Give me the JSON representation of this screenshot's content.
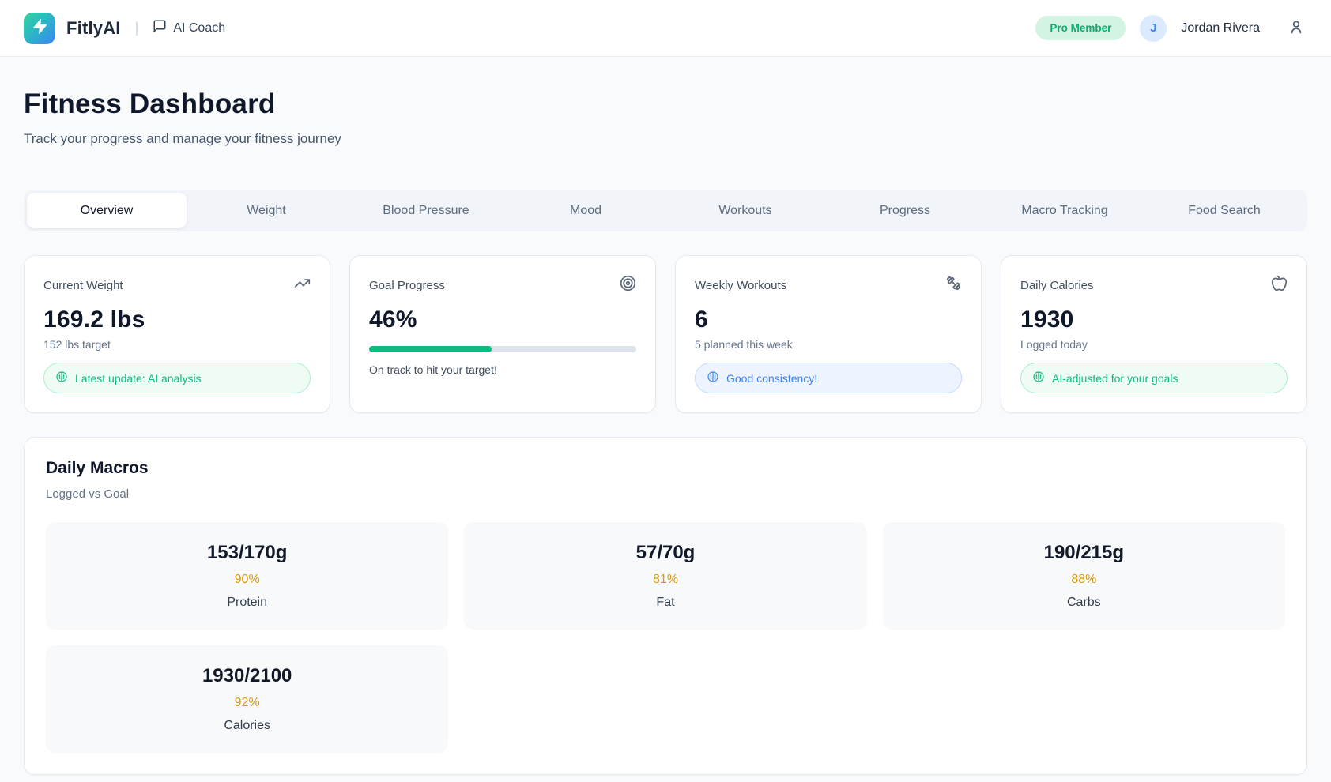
{
  "header": {
    "brand": "FitlyAI",
    "divider": "|",
    "coach_label": "AI Coach",
    "membership_badge": "Pro Member",
    "avatar_initial": "J",
    "user_name": "Jordan Rivera"
  },
  "page": {
    "title": "Fitness Dashboard",
    "subtitle": "Track your progress and manage your fitness journey"
  },
  "tabs": [
    {
      "label": "Overview",
      "active": true
    },
    {
      "label": "Weight",
      "active": false
    },
    {
      "label": "Blood Pressure",
      "active": false
    },
    {
      "label": "Mood",
      "active": false
    },
    {
      "label": "Workouts",
      "active": false
    },
    {
      "label": "Progress",
      "active": false
    },
    {
      "label": "Macro Tracking",
      "active": false
    },
    {
      "label": "Food Search",
      "active": false
    }
  ],
  "stats": [
    {
      "label": "Current Weight",
      "icon": "trending-up-icon",
      "value": "169.2 lbs",
      "sub": "152 lbs target",
      "badge": {
        "text": "Latest update: AI analysis",
        "color": "green",
        "icon": "brain-icon"
      }
    },
    {
      "label": "Goal Progress",
      "icon": "target-icon",
      "value": "46%",
      "progress_pct": 46,
      "note": "On track to hit your target!"
    },
    {
      "label": "Weekly Workouts",
      "icon": "dumbbell-icon",
      "value": "6",
      "sub": "5 planned this week",
      "badge": {
        "text": "Good consistency!",
        "color": "blue",
        "icon": "brain-icon"
      }
    },
    {
      "label": "Daily Calories",
      "icon": "apple-icon",
      "value": "1930",
      "sub": "Logged today",
      "badge": {
        "text": "AI-adjusted for your goals",
        "color": "green",
        "icon": "brain-icon"
      }
    }
  ],
  "macros": {
    "title": "Daily Macros",
    "subtitle": "Logged vs Goal",
    "items": [
      {
        "value": "153/170g",
        "percent": "90%",
        "label": "Protein"
      },
      {
        "value": "57/70g",
        "percent": "81%",
        "label": "Fat"
      },
      {
        "value": "190/215g",
        "percent": "88%",
        "label": "Carbs"
      },
      {
        "value": "1930/2100",
        "percent": "92%",
        "label": "Calories"
      }
    ]
  },
  "colors": {
    "brand_gradient_start": "#34d399",
    "brand_gradient_end": "#3b82f6",
    "success_green": "#10b981",
    "badge_green_bg": "#eefcf4",
    "info_blue": "#3b82f6",
    "badge_blue_bg": "#eef4ff",
    "pro_badge_bg": "#d3f3e3",
    "pro_badge_text": "#0faa72",
    "amber_percent": "#d99b0b",
    "progress_fill": "#10b981"
  }
}
